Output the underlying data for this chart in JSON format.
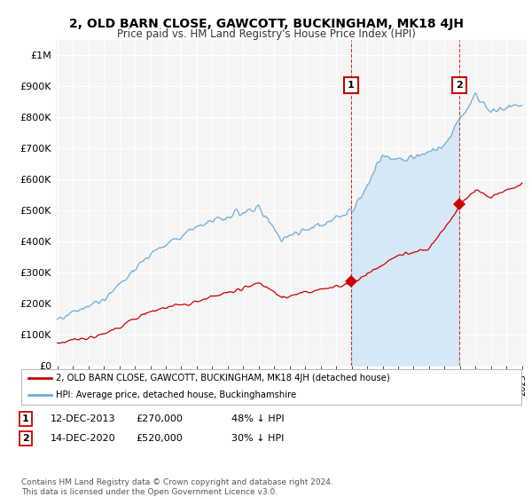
{
  "title": "2, OLD BARN CLOSE, GAWCOTT, BUCKINGHAM, MK18 4JH",
  "subtitle": "Price paid vs. HM Land Registry's House Price Index (HPI)",
  "ylim": [
    0,
    1050000
  ],
  "yticks": [
    0,
    100000,
    200000,
    300000,
    400000,
    500000,
    600000,
    700000,
    800000,
    900000,
    1000000
  ],
  "ytick_labels": [
    "£0",
    "£100K",
    "£200K",
    "£300K",
    "£400K",
    "£500K",
    "£600K",
    "£700K",
    "£800K",
    "£900K",
    "£1M"
  ],
  "hpi_color": "#6baed6",
  "hpi_fill_color": "#d6e8f5",
  "price_color": "#cc0000",
  "annotation_box_color": "#cc0000",
  "sale1_x": 2013.95,
  "sale1_y": 270000,
  "sale2_x": 2020.95,
  "sale2_y": 520000,
  "legend_entries": [
    "2, OLD BARN CLOSE, GAWCOTT, BUCKINGHAM, MK18 4JH (detached house)",
    "HPI: Average price, detached house, Buckinghamshire"
  ],
  "table_row1": [
    "1",
    "12-DEC-2013",
    "£270,000",
    "48% ↓ HPI"
  ],
  "table_row2": [
    "2",
    "14-DEC-2020",
    "£520,000",
    "30% ↓ HPI"
  ],
  "footer": "Contains HM Land Registry data © Crown copyright and database right 2024.\nThis data is licensed under the Open Government Licence v3.0.",
  "background_color": "#ffffff",
  "plot_bg_color": "#f5f5f5",
  "xmin": 1995,
  "xmax": 2025
}
